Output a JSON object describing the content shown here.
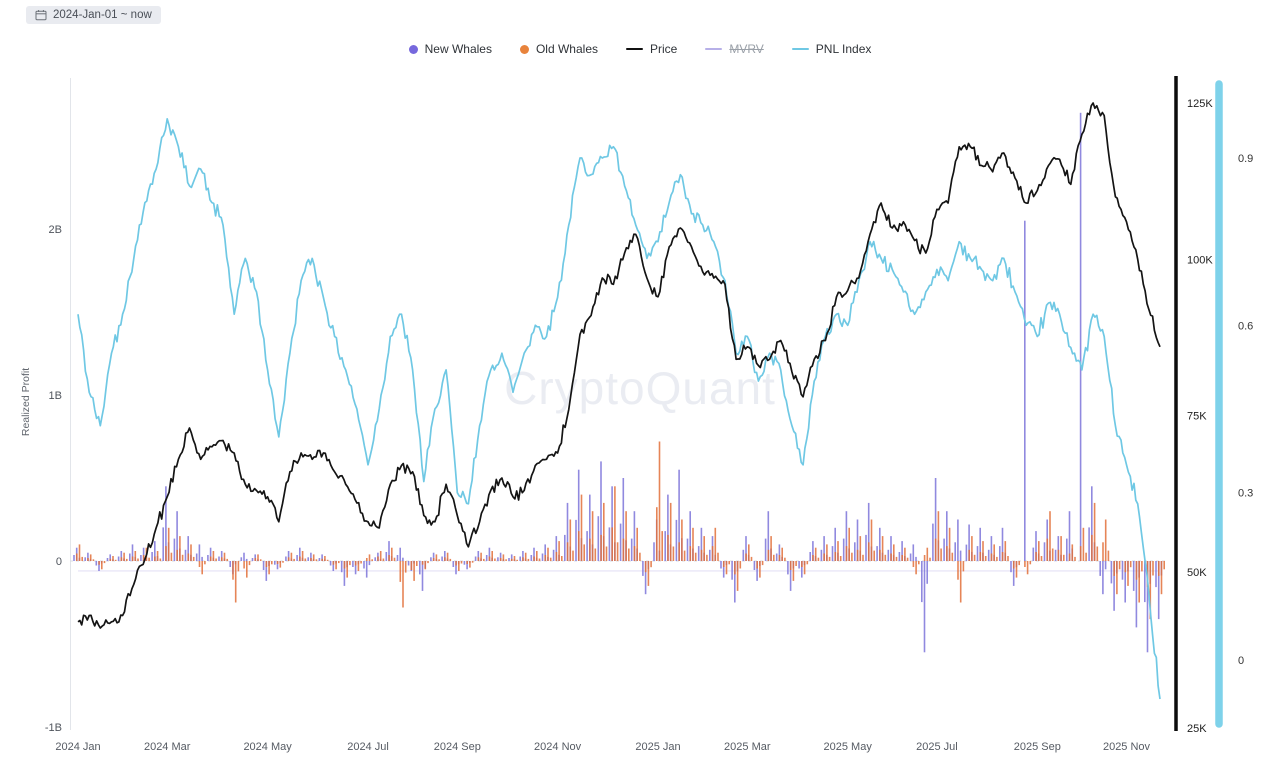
{
  "toolbar": {
    "date_range": "2024-Jan-01 ~ now"
  },
  "watermark": "CryptoQuant",
  "legend": {
    "items": [
      {
        "label": "New Whales",
        "color": "#7668dd",
        "marker": "dot",
        "disabled": false
      },
      {
        "label": "Old Whales",
        "color": "#e8833c",
        "marker": "dot",
        "disabled": false
      },
      {
        "label": "Price",
        "color": "#111111",
        "marker": "line",
        "disabled": false
      },
      {
        "label": "MVRV",
        "color": "#b7b0e8",
        "marker": "line",
        "disabled": true
      },
      {
        "label": "PNL Index",
        "color": "#6fc8e4",
        "marker": "line",
        "disabled": false
      }
    ]
  },
  "axes": {
    "left_title": "Realized Profit",
    "left_ticks": [
      {
        "label": "2B",
        "value": 2
      },
      {
        "label": "1B",
        "value": 1
      },
      {
        "label": "0",
        "value": 0
      },
      {
        "label": "-1B",
        "value": -1
      }
    ],
    "price_ticks": [
      {
        "label": "125K",
        "value": 125
      },
      {
        "label": "100K",
        "value": 100
      },
      {
        "label": "75K",
        "value": 75
      },
      {
        "label": "50K",
        "value": 50
      },
      {
        "label": "25K",
        "value": 25
      }
    ],
    "pnl_ticks": [
      {
        "label": "0.9",
        "value": 0.9
      },
      {
        "label": "0.6",
        "value": 0.6
      },
      {
        "label": "0.3",
        "value": 0.3
      },
      {
        "label": "0",
        "value": 0
      }
    ],
    "x_ticks": [
      {
        "label": "2024 Jan",
        "week": 0
      },
      {
        "label": "2024 Mar",
        "week": 8
      },
      {
        "label": "2024 May",
        "week": 17
      },
      {
        "label": "2024 Jul",
        "week": 26
      },
      {
        "label": "2024 Sep",
        "week": 34
      },
      {
        "label": "2024 Nov",
        "week": 43
      },
      {
        "label": "2025 Jan",
        "week": 52
      },
      {
        "label": "2025 Mar",
        "week": 60
      },
      {
        "label": "2025 May",
        "week": 69
      },
      {
        "label": "2025 Jul",
        "week": 77
      },
      {
        "label": "2025 Sep",
        "week": 86
      },
      {
        "label": "2025 Nov",
        "week": 94
      }
    ]
  },
  "chart_data": {
    "type": "mixed",
    "granularity": "weekly estimates read off the chart, week index from 2024-01-01",
    "weeks": 98,
    "axis_ranges": {
      "left_realized_profit_B": [
        -1.25,
        2.9
      ],
      "price_K": [
        25,
        129
      ],
      "pnl_index": [
        -0.1,
        1.05
      ]
    },
    "legend_position": "top-center",
    "grid": "off",
    "series": [
      {
        "name": "New Whales",
        "type": "bar",
        "axis": "left_realized_profit_B",
        "color": "#7d74d9",
        "values": [
          0.08,
          0.05,
          -0.06,
          0.04,
          0.06,
          0.1,
          0.08,
          0.12,
          0.45,
          0.3,
          0.15,
          0.1,
          0.08,
          0.06,
          -0.08,
          0.05,
          0.04,
          -0.12,
          -0.05,
          0.06,
          0.08,
          0.05,
          0.04,
          -0.06,
          -0.15,
          -0.08,
          -0.1,
          0.05,
          0.12,
          0.08,
          -0.06,
          -0.18,
          0.05,
          0.06,
          -0.08,
          -0.05,
          0.06,
          0.08,
          0.05,
          0.04,
          0.06,
          0.08,
          0.1,
          0.15,
          0.35,
          0.55,
          0.4,
          0.6,
          0.45,
          0.5,
          0.3,
          -0.2,
          0.25,
          0.4,
          0.55,
          0.3,
          0.2,
          0.15,
          -0.1,
          -0.25,
          0.15,
          -0.12,
          0.3,
          0.1,
          -0.18,
          -0.1,
          0.12,
          0.15,
          0.2,
          0.3,
          0.25,
          0.35,
          0.2,
          0.15,
          0.12,
          0.1,
          -0.55,
          0.5,
          0.3,
          0.25,
          0.22,
          0.2,
          0.15,
          0.2,
          -0.15,
          2.05,
          0.18,
          0.25,
          0.15,
          0.3,
          2.7,
          0.45,
          -0.2,
          -0.3,
          -0.25,
          -0.4,
          -0.55,
          -0.35
        ]
      },
      {
        "name": "Old Whales",
        "type": "bar",
        "axis": "left_realized_profit_B",
        "color": "#e2703a",
        "values": [
          0.1,
          0.04,
          -0.05,
          0.03,
          0.05,
          0.06,
          0.08,
          0.06,
          0.2,
          0.15,
          0.1,
          -0.08,
          0.06,
          0.05,
          -0.25,
          -0.1,
          0.04,
          -0.08,
          -0.04,
          0.05,
          0.06,
          0.04,
          0.03,
          -0.05,
          -0.1,
          -0.06,
          0.04,
          0.06,
          0.08,
          -0.28,
          -0.12,
          -0.05,
          0.04,
          0.05,
          -0.06,
          -0.04,
          0.05,
          0.06,
          0.04,
          0.03,
          0.05,
          0.06,
          0.08,
          0.12,
          0.25,
          0.4,
          0.3,
          0.35,
          0.45,
          0.3,
          0.2,
          -0.15,
          0.72,
          0.35,
          0.25,
          0.2,
          0.15,
          0.2,
          -0.08,
          -0.18,
          0.1,
          -0.1,
          0.15,
          0.08,
          -0.12,
          -0.08,
          0.08,
          0.1,
          0.12,
          0.2,
          0.15,
          0.25,
          0.15,
          0.1,
          0.08,
          -0.08,
          0.08,
          0.3,
          0.2,
          -0.25,
          0.15,
          0.12,
          0.1,
          0.12,
          -0.1,
          -0.08,
          0.12,
          0.3,
          0.15,
          0.1,
          0.2,
          0.35,
          0.25,
          -0.2,
          -0.15,
          -0.25,
          -0.35,
          -0.2
        ]
      },
      {
        "name": "Price",
        "type": "line",
        "axis": "right_price_K",
        "color": "#141414",
        "values": [
          42,
          43,
          41,
          42,
          43,
          48,
          52,
          57,
          62,
          68,
          73,
          68,
          70,
          71,
          69,
          64,
          63,
          62,
          58,
          66,
          69,
          68,
          69,
          66,
          64,
          61,
          58,
          57,
          64,
          67,
          66,
          59,
          58,
          64,
          59,
          54,
          58,
          63,
          65,
          62,
          63,
          67,
          68,
          69,
          76,
          88,
          91,
          97,
          96,
          101,
          104,
          97,
          94,
          102,
          105,
          102,
          98,
          97,
          96,
          84,
          86,
          83,
          84,
          87,
          82,
          78,
          84,
          87,
          94,
          95,
          97,
          104,
          109,
          105,
          106,
          103,
          101,
          108,
          109,
          118,
          118,
          115,
          114,
          117,
          113,
          109,
          111,
          115,
          116,
          112,
          120,
          125,
          123,
          110,
          106,
          100,
          92,
          86
        ]
      },
      {
        "name": "PNL Index",
        "type": "line",
        "axis": "far_right_0_1",
        "color": "#6fc8e4",
        "values": [
          0.62,
          0.48,
          0.42,
          0.55,
          0.62,
          0.72,
          0.82,
          0.88,
          0.97,
          0.92,
          0.85,
          0.88,
          0.82,
          0.78,
          0.62,
          0.72,
          0.66,
          0.52,
          0.4,
          0.55,
          0.68,
          0.72,
          0.65,
          0.58,
          0.52,
          0.45,
          0.35,
          0.45,
          0.58,
          0.62,
          0.52,
          0.32,
          0.45,
          0.52,
          0.3,
          0.28,
          0.42,
          0.52,
          0.55,
          0.48,
          0.55,
          0.6,
          0.58,
          0.65,
          0.78,
          0.9,
          0.87,
          0.9,
          0.92,
          0.85,
          0.78,
          0.72,
          0.75,
          0.82,
          0.87,
          0.8,
          0.78,
          0.75,
          0.68,
          0.55,
          0.58,
          0.5,
          0.55,
          0.52,
          0.42,
          0.35,
          0.5,
          0.58,
          0.62,
          0.6,
          0.68,
          0.75,
          0.72,
          0.7,
          0.66,
          0.62,
          0.66,
          0.7,
          0.68,
          0.75,
          0.72,
          0.7,
          0.68,
          0.72,
          0.66,
          0.6,
          0.58,
          0.64,
          0.62,
          0.56,
          0.52,
          0.62,
          0.58,
          0.42,
          0.35,
          0.28,
          0.12,
          -0.07
        ]
      },
      {
        "name": "MVRV",
        "type": "line",
        "axis": "left_realized_profit_B",
        "color": "#cfc9ee",
        "disabled": true,
        "shown_as": "faint flat line near zero, legend struck through",
        "flat_value_B": -0.06,
        "values": []
      }
    ]
  }
}
